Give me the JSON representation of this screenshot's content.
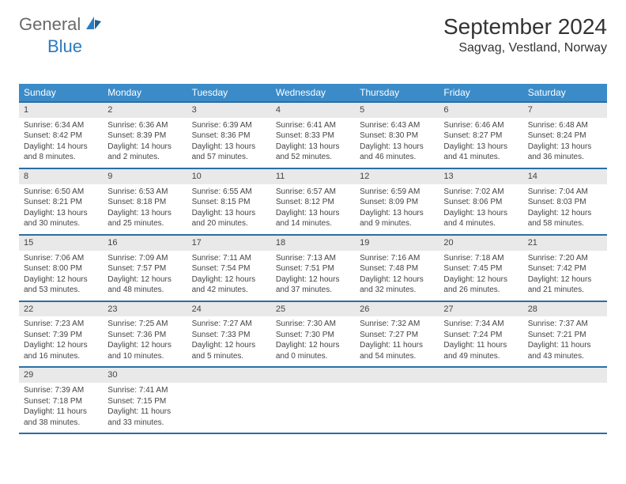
{
  "brand": {
    "part1": "General",
    "part2": "Blue"
  },
  "title": "September 2024",
  "location": "Sagvag, Vestland, Norway",
  "colors": {
    "header_bg": "#3b8bc8",
    "header_border": "#2b6fa3",
    "daynum_bg": "#e9e9e9",
    "brand_grey": "#6a6a6a",
    "brand_blue": "#2b7bbf"
  },
  "weekdays": [
    "Sunday",
    "Monday",
    "Tuesday",
    "Wednesday",
    "Thursday",
    "Friday",
    "Saturday"
  ],
  "weeks": [
    {
      "nums": [
        "1",
        "2",
        "3",
        "4",
        "5",
        "6",
        "7"
      ],
      "cells": [
        {
          "sr": "Sunrise: 6:34 AM",
          "ss": "Sunset: 8:42 PM",
          "dl": "Daylight: 14 hours and 8 minutes."
        },
        {
          "sr": "Sunrise: 6:36 AM",
          "ss": "Sunset: 8:39 PM",
          "dl": "Daylight: 14 hours and 2 minutes."
        },
        {
          "sr": "Sunrise: 6:39 AM",
          "ss": "Sunset: 8:36 PM",
          "dl": "Daylight: 13 hours and 57 minutes."
        },
        {
          "sr": "Sunrise: 6:41 AM",
          "ss": "Sunset: 8:33 PM",
          "dl": "Daylight: 13 hours and 52 minutes."
        },
        {
          "sr": "Sunrise: 6:43 AM",
          "ss": "Sunset: 8:30 PM",
          "dl": "Daylight: 13 hours and 46 minutes."
        },
        {
          "sr": "Sunrise: 6:46 AM",
          "ss": "Sunset: 8:27 PM",
          "dl": "Daylight: 13 hours and 41 minutes."
        },
        {
          "sr": "Sunrise: 6:48 AM",
          "ss": "Sunset: 8:24 PM",
          "dl": "Daylight: 13 hours and 36 minutes."
        }
      ]
    },
    {
      "nums": [
        "8",
        "9",
        "10",
        "11",
        "12",
        "13",
        "14"
      ],
      "cells": [
        {
          "sr": "Sunrise: 6:50 AM",
          "ss": "Sunset: 8:21 PM",
          "dl": "Daylight: 13 hours and 30 minutes."
        },
        {
          "sr": "Sunrise: 6:53 AM",
          "ss": "Sunset: 8:18 PM",
          "dl": "Daylight: 13 hours and 25 minutes."
        },
        {
          "sr": "Sunrise: 6:55 AM",
          "ss": "Sunset: 8:15 PM",
          "dl": "Daylight: 13 hours and 20 minutes."
        },
        {
          "sr": "Sunrise: 6:57 AM",
          "ss": "Sunset: 8:12 PM",
          "dl": "Daylight: 13 hours and 14 minutes."
        },
        {
          "sr": "Sunrise: 6:59 AM",
          "ss": "Sunset: 8:09 PM",
          "dl": "Daylight: 13 hours and 9 minutes."
        },
        {
          "sr": "Sunrise: 7:02 AM",
          "ss": "Sunset: 8:06 PM",
          "dl": "Daylight: 13 hours and 4 minutes."
        },
        {
          "sr": "Sunrise: 7:04 AM",
          "ss": "Sunset: 8:03 PM",
          "dl": "Daylight: 12 hours and 58 minutes."
        }
      ]
    },
    {
      "nums": [
        "15",
        "16",
        "17",
        "18",
        "19",
        "20",
        "21"
      ],
      "cells": [
        {
          "sr": "Sunrise: 7:06 AM",
          "ss": "Sunset: 8:00 PM",
          "dl": "Daylight: 12 hours and 53 minutes."
        },
        {
          "sr": "Sunrise: 7:09 AM",
          "ss": "Sunset: 7:57 PM",
          "dl": "Daylight: 12 hours and 48 minutes."
        },
        {
          "sr": "Sunrise: 7:11 AM",
          "ss": "Sunset: 7:54 PM",
          "dl": "Daylight: 12 hours and 42 minutes."
        },
        {
          "sr": "Sunrise: 7:13 AM",
          "ss": "Sunset: 7:51 PM",
          "dl": "Daylight: 12 hours and 37 minutes."
        },
        {
          "sr": "Sunrise: 7:16 AM",
          "ss": "Sunset: 7:48 PM",
          "dl": "Daylight: 12 hours and 32 minutes."
        },
        {
          "sr": "Sunrise: 7:18 AM",
          "ss": "Sunset: 7:45 PM",
          "dl": "Daylight: 12 hours and 26 minutes."
        },
        {
          "sr": "Sunrise: 7:20 AM",
          "ss": "Sunset: 7:42 PM",
          "dl": "Daylight: 12 hours and 21 minutes."
        }
      ]
    },
    {
      "nums": [
        "22",
        "23",
        "24",
        "25",
        "26",
        "27",
        "28"
      ],
      "cells": [
        {
          "sr": "Sunrise: 7:23 AM",
          "ss": "Sunset: 7:39 PM",
          "dl": "Daylight: 12 hours and 16 minutes."
        },
        {
          "sr": "Sunrise: 7:25 AM",
          "ss": "Sunset: 7:36 PM",
          "dl": "Daylight: 12 hours and 10 minutes."
        },
        {
          "sr": "Sunrise: 7:27 AM",
          "ss": "Sunset: 7:33 PM",
          "dl": "Daylight: 12 hours and 5 minutes."
        },
        {
          "sr": "Sunrise: 7:30 AM",
          "ss": "Sunset: 7:30 PM",
          "dl": "Daylight: 12 hours and 0 minutes."
        },
        {
          "sr": "Sunrise: 7:32 AM",
          "ss": "Sunset: 7:27 PM",
          "dl": "Daylight: 11 hours and 54 minutes."
        },
        {
          "sr": "Sunrise: 7:34 AM",
          "ss": "Sunset: 7:24 PM",
          "dl": "Daylight: 11 hours and 49 minutes."
        },
        {
          "sr": "Sunrise: 7:37 AM",
          "ss": "Sunset: 7:21 PM",
          "dl": "Daylight: 11 hours and 43 minutes."
        }
      ]
    },
    {
      "nums": [
        "29",
        "30",
        "",
        "",
        "",
        "",
        ""
      ],
      "cells": [
        {
          "sr": "Sunrise: 7:39 AM",
          "ss": "Sunset: 7:18 PM",
          "dl": "Daylight: 11 hours and 38 minutes."
        },
        {
          "sr": "Sunrise: 7:41 AM",
          "ss": "Sunset: 7:15 PM",
          "dl": "Daylight: 11 hours and 33 minutes."
        },
        {
          "sr": "",
          "ss": "",
          "dl": ""
        },
        {
          "sr": "",
          "ss": "",
          "dl": ""
        },
        {
          "sr": "",
          "ss": "",
          "dl": ""
        },
        {
          "sr": "",
          "ss": "",
          "dl": ""
        },
        {
          "sr": "",
          "ss": "",
          "dl": ""
        }
      ]
    }
  ]
}
